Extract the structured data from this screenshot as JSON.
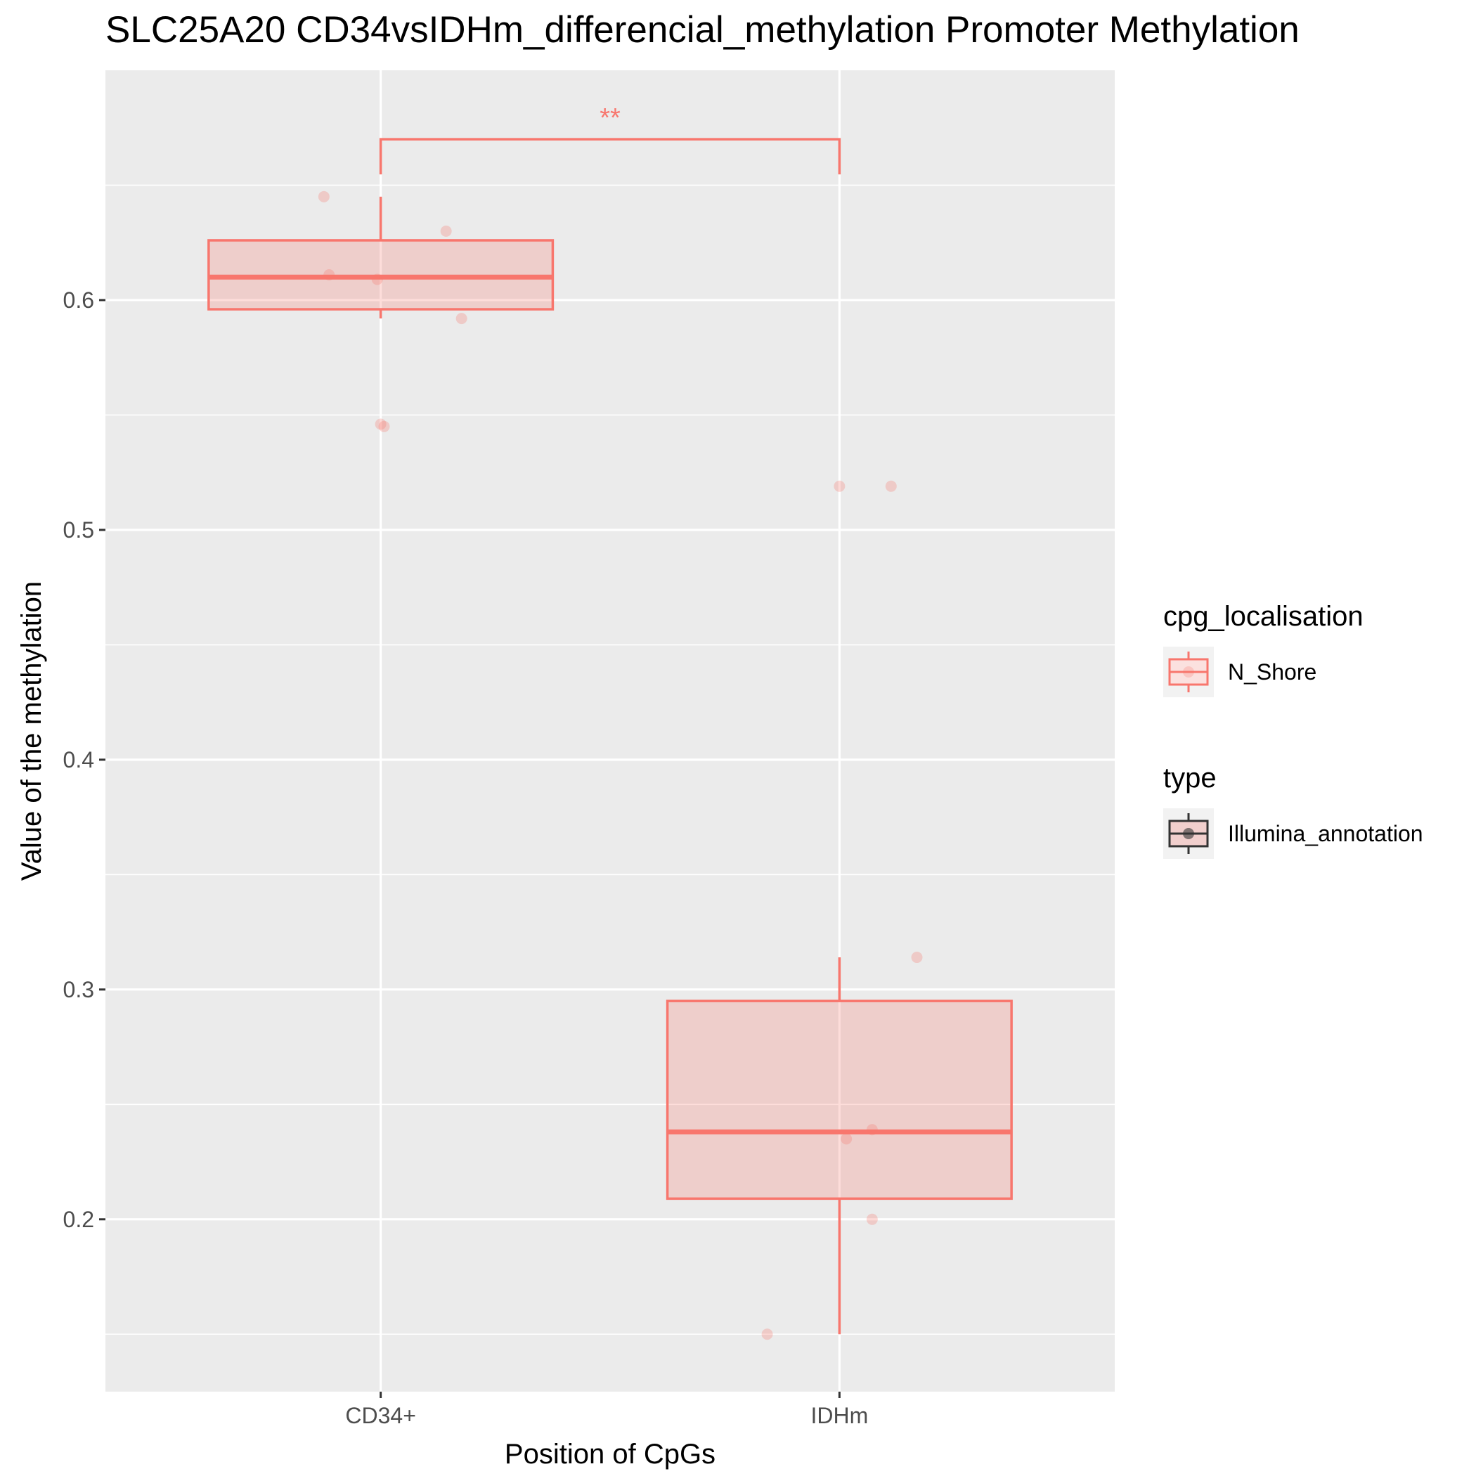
{
  "chart_data": {
    "type": "box",
    "title": "SLC25A20 CD34vsIDHm_differencial_methylation Promoter Methylation",
    "xlabel": "Position of CpGs",
    "ylabel": "Value of the methylation",
    "categories": [
      "CD34+",
      "IDHm"
    ],
    "ylim": [
      0.125,
      0.7
    ],
    "yticks": [
      0.2,
      0.3,
      0.4,
      0.5,
      0.6
    ],
    "ytick_labels": [
      "0.2",
      "0.3",
      "0.4",
      "0.5",
      "0.6"
    ],
    "grid": true,
    "series": [
      {
        "name": "N_Shore",
        "color": "#f8766d",
        "boxes": [
          {
            "category": "CD34+",
            "lower_whisker": 0.592,
            "q1": 0.596,
            "median": 0.61,
            "q3": 0.626,
            "upper_whisker": 0.645
          },
          {
            "category": "IDHm",
            "lower_whisker": 0.15,
            "q1": 0.209,
            "median": 0.238,
            "q3": 0.295,
            "upper_whisker": 0.314
          }
        ],
        "points": [
          {
            "category": "CD34+",
            "jitter": -0.33,
            "y": 0.645
          },
          {
            "category": "CD34+",
            "jitter": 0.38,
            "y": 0.63
          },
          {
            "category": "CD34+",
            "jitter": -0.3,
            "y": 0.611
          },
          {
            "category": "CD34+",
            "jitter": -0.02,
            "y": 0.609
          },
          {
            "category": "CD34+",
            "jitter": 0.47,
            "y": 0.592
          },
          {
            "category": "CD34+",
            "jitter": 0.0,
            "y": 0.546
          },
          {
            "category": "CD34+",
            "jitter": 0.02,
            "y": 0.545
          },
          {
            "category": "IDHm",
            "jitter": 0.0,
            "y": 0.519
          },
          {
            "category": "IDHm",
            "jitter": 0.3,
            "y": 0.519
          },
          {
            "category": "IDHm",
            "jitter": 0.45,
            "y": 0.314
          },
          {
            "category": "IDHm",
            "jitter": 0.19,
            "y": 0.239
          },
          {
            "category": "IDHm",
            "jitter": 0.04,
            "y": 0.235
          },
          {
            "category": "IDHm",
            "jitter": 0.19,
            "y": 0.2
          },
          {
            "category": "IDHm",
            "jitter": -0.42,
            "y": 0.15
          }
        ]
      }
    ],
    "significance": {
      "from": "CD34+",
      "to": "IDHm",
      "y": 0.67,
      "label": "**"
    },
    "legend_position": "right",
    "legends": [
      {
        "title": "cpg_localisation",
        "entries": [
          {
            "label": "N_Shore",
            "color": "#f8766d"
          }
        ]
      },
      {
        "title": "type",
        "entries": [
          {
            "label": "Illumina_annotation",
            "color": "#333333"
          }
        ]
      }
    ]
  }
}
